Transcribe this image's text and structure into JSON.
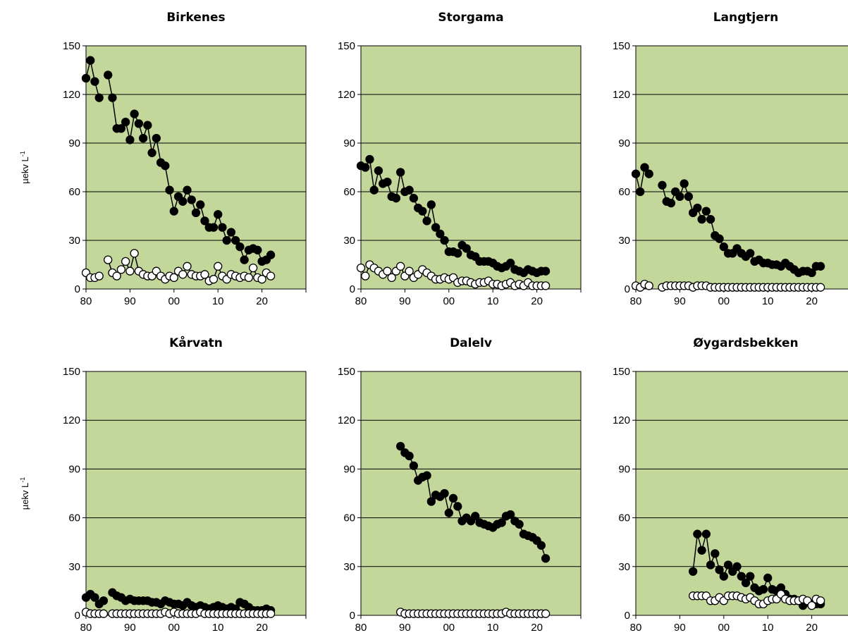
{
  "chart_data": [
    {
      "type": "line",
      "title": "Birkenes",
      "ylabel": "µekv L",
      "ylabel_sup": "-1",
      "ylim": [
        0,
        150
      ],
      "yticks": [
        "0",
        "30",
        "60",
        "90",
        "120",
        "150"
      ],
      "xlim": [
        1980,
        2030
      ],
      "xticks": [
        "80",
        "90",
        "00",
        "10",
        "20"
      ],
      "grid": "horizontal",
      "series": [
        {
          "marker": "filled",
          "x": [
            1980,
            1981,
            1982,
            1983,
            1985,
            1986,
            1987,
            1988,
            1989,
            1990,
            1991,
            1992,
            1993,
            1994,
            1995,
            1996,
            1997,
            1998,
            1999,
            2000,
            2001,
            2002,
            2003,
            2004,
            2005,
            2006,
            2007,
            2008,
            2009,
            2010,
            2011,
            2012,
            2013,
            2014,
            2015,
            2016,
            2017,
            2018,
            2019,
            2020,
            2021,
            2022
          ],
          "y": [
            130,
            141,
            128,
            118,
            132,
            118,
            99,
            99,
            103,
            92,
            108,
            102,
            93,
            101,
            84,
            93,
            78,
            76,
            61,
            48,
            57,
            54,
            61,
            55,
            47,
            52,
            42,
            38,
            38,
            46,
            38,
            30,
            35,
            30,
            26,
            18,
            24,
            25,
            24,
            17,
            18,
            21
          ]
        },
        {
          "marker": "open",
          "x": [
            1980,
            1981,
            1982,
            1983,
            1985,
            1986,
            1987,
            1988,
            1989,
            1990,
            1991,
            1992,
            1993,
            1994,
            1995,
            1996,
            1997,
            1998,
            1999,
            2000,
            2001,
            2002,
            2003,
            2004,
            2005,
            2006,
            2007,
            2008,
            2009,
            2010,
            2011,
            2012,
            2013,
            2014,
            2015,
            2016,
            2017,
            2018,
            2019,
            2020,
            2021,
            2022
          ],
          "y": [
            10,
            7,
            7,
            8,
            18,
            10,
            8,
            12,
            17,
            11,
            22,
            11,
            9,
            8,
            8,
            11,
            8,
            6,
            8,
            7,
            11,
            9,
            14,
            9,
            8,
            8,
            9,
            5,
            6,
            14,
            8,
            6,
            9,
            8,
            7,
            8,
            7,
            13,
            7,
            6,
            10,
            8
          ]
        }
      ]
    },
    {
      "type": "line",
      "title": "Storgama",
      "ylim": [
        0,
        150
      ],
      "yticks": [
        "0",
        "30",
        "60",
        "90",
        "120",
        "150"
      ],
      "xlim": [
        1980,
        2030
      ],
      "xticks": [
        "80",
        "90",
        "00",
        "10",
        "20"
      ],
      "grid": "horizontal",
      "series": [
        {
          "marker": "filled",
          "x": [
            1980,
            1981,
            1982,
            1983,
            1984,
            1985,
            1986,
            1987,
            1988,
            1989,
            1990,
            1991,
            1992,
            1993,
            1994,
            1995,
            1996,
            1997,
            1998,
            1999,
            2000,
            2001,
            2002,
            2003,
            2004,
            2005,
            2006,
            2007,
            2008,
            2009,
            2010,
            2011,
            2012,
            2013,
            2014,
            2015,
            2016,
            2017,
            2018,
            2019,
            2020,
            2021,
            2022
          ],
          "y": [
            76,
            75,
            80,
            61,
            73,
            65,
            66,
            57,
            56,
            72,
            60,
            61,
            56,
            50,
            48,
            42,
            52,
            38,
            34,
            30,
            23,
            23,
            22,
            27,
            25,
            21,
            20,
            17,
            17,
            17,
            16,
            14,
            13,
            14,
            16,
            12,
            11,
            10,
            12,
            11,
            10,
            11,
            11
          ]
        },
        {
          "marker": "open",
          "x": [
            1980,
            1981,
            1982,
            1983,
            1984,
            1985,
            1986,
            1987,
            1988,
            1989,
            1990,
            1991,
            1992,
            1993,
            1994,
            1995,
            1996,
            1997,
            1998,
            1999,
            2000,
            2001,
            2002,
            2003,
            2004,
            2005,
            2006,
            2007,
            2008,
            2009,
            2010,
            2011,
            2012,
            2013,
            2014,
            2015,
            2016,
            2017,
            2018,
            2019,
            2020,
            2021,
            2022
          ],
          "y": [
            13,
            8,
            15,
            13,
            11,
            9,
            11,
            7,
            11,
            14,
            8,
            11,
            7,
            9,
            12,
            10,
            8,
            6,
            6,
            7,
            6,
            7,
            4,
            5,
            5,
            4,
            3,
            4,
            4,
            5,
            3,
            3,
            2,
            3,
            4,
            2,
            3,
            2,
            4,
            2,
            2,
            2,
            2
          ]
        }
      ]
    },
    {
      "type": "line",
      "title": "Langtjern",
      "ylim": [
        0,
        150
      ],
      "yticks": [
        "0",
        "30",
        "60",
        "90",
        "120",
        "150"
      ],
      "xlim": [
        1980,
        2030
      ],
      "xticks": [
        "80",
        "90",
        "00",
        "10",
        "20"
      ],
      "grid": "horizontal",
      "series": [
        {
          "marker": "filled",
          "x": [
            1980,
            1981,
            1982,
            1983,
            1986,
            1987,
            1988,
            1989,
            1990,
            1991,
            1992,
            1993,
            1994,
            1995,
            1996,
            1997,
            1998,
            1999,
            2000,
            2001,
            2002,
            2003,
            2004,
            2005,
            2006,
            2007,
            2008,
            2009,
            2010,
            2011,
            2012,
            2013,
            2014,
            2015,
            2016,
            2017,
            2018,
            2019,
            2020,
            2021,
            2022
          ],
          "y": [
            71,
            60,
            75,
            71,
            64,
            54,
            53,
            60,
            57,
            65,
            57,
            47,
            50,
            43,
            48,
            43,
            33,
            31,
            26,
            22,
            22,
            25,
            22,
            20,
            22,
            17,
            18,
            16,
            16,
            15,
            15,
            14,
            16,
            14,
            12,
            10,
            11,
            11,
            10,
            14,
            14
          ]
        },
        {
          "marker": "open",
          "x": [
            1980,
            1981,
            1982,
            1983,
            1986,
            1987,
            1988,
            1989,
            1990,
            1991,
            1992,
            1993,
            1994,
            1995,
            1996,
            1997,
            1998,
            1999,
            2000,
            2001,
            2002,
            2003,
            2004,
            2005,
            2006,
            2007,
            2008,
            2009,
            2010,
            2011,
            2012,
            2013,
            2014,
            2015,
            2016,
            2017,
            2018,
            2019,
            2020,
            2021,
            2022
          ],
          "y": [
            2,
            1,
            3,
            2,
            1,
            2,
            2,
            2,
            2,
            2,
            2,
            1,
            2,
            2,
            2,
            1,
            1,
            1,
            1,
            1,
            1,
            1,
            1,
            1,
            1,
            1,
            1,
            1,
            1,
            1,
            1,
            1,
            1,
            1,
            1,
            1,
            1,
            1,
            1,
            1,
            1
          ]
        }
      ]
    },
    {
      "type": "line",
      "title": "Kårvatn",
      "ylabel": "µekv L",
      "ylabel_sup": "-1",
      "ylim": [
        0,
        150
      ],
      "yticks": [
        "0",
        "30",
        "60",
        "90",
        "120",
        "150"
      ],
      "xlim": [
        1980,
        2030
      ],
      "xticks": [
        "80",
        "90",
        "00",
        "10",
        "20"
      ],
      "grid": "horizontal",
      "series": [
        {
          "marker": "filled",
          "x": [
            1980,
            1981,
            1982,
            1983,
            1984,
            1986,
            1987,
            1988,
            1989,
            1990,
            1991,
            1992,
            1993,
            1994,
            1995,
            1996,
            1997,
            1998,
            1999,
            2000,
            2001,
            2002,
            2003,
            2004,
            2005,
            2006,
            2007,
            2008,
            2009,
            2010,
            2011,
            2012,
            2013,
            2014,
            2015,
            2016,
            2017,
            2018,
            2019,
            2020,
            2021,
            2022
          ],
          "y": [
            11,
            13,
            11,
            7,
            9,
            14,
            12,
            11,
            9,
            10,
            9,
            9,
            9,
            9,
            8,
            8,
            7,
            9,
            8,
            7,
            7,
            6,
            8,
            6,
            5,
            6,
            5,
            4,
            5,
            6,
            5,
            4,
            5,
            4,
            8,
            7,
            5,
            3,
            3,
            3,
            4,
            3
          ]
        },
        {
          "marker": "open",
          "x": [
            1980,
            1981,
            1982,
            1983,
            1984,
            1986,
            1987,
            1988,
            1989,
            1990,
            1991,
            1992,
            1993,
            1994,
            1995,
            1996,
            1997,
            1998,
            1999,
            2000,
            2001,
            2002,
            2003,
            2004,
            2005,
            2006,
            2007,
            2008,
            2009,
            2010,
            2011,
            2012,
            2013,
            2014,
            2015,
            2016,
            2017,
            2018,
            2019,
            2020,
            2021,
            2022
          ],
          "y": [
            2,
            1,
            1,
            1,
            1,
            1,
            1,
            1,
            1,
            1,
            1,
            1,
            1,
            1,
            1,
            1,
            1,
            2,
            1,
            2,
            1,
            1,
            1,
            1,
            1,
            2,
            1,
            1,
            1,
            1,
            1,
            1,
            1,
            1,
            1,
            1,
            1,
            1,
            1,
            1,
            1,
            1
          ]
        }
      ]
    },
    {
      "type": "line",
      "title": "Dalelv",
      "ylim": [
        0,
        150
      ],
      "yticks": [
        "0",
        "30",
        "60",
        "90",
        "120",
        "150"
      ],
      "xlim": [
        1980,
        2030
      ],
      "xticks": [
        "80",
        "90",
        "00",
        "10",
        "20"
      ],
      "grid": "horizontal",
      "series": [
        {
          "marker": "filled",
          "x": [
            1989,
            1990,
            1991,
            1992,
            1993,
            1994,
            1995,
            1996,
            1997,
            1998,
            1999,
            2000,
            2001,
            2002,
            2003,
            2004,
            2005,
            2006,
            2007,
            2008,
            2009,
            2010,
            2011,
            2012,
            2013,
            2014,
            2015,
            2016,
            2017,
            2018,
            2019,
            2020,
            2021,
            2022
          ],
          "y": [
            104,
            100,
            98,
            92,
            83,
            85,
            86,
            70,
            74,
            73,
            75,
            63,
            72,
            67,
            58,
            60,
            58,
            61,
            57,
            56,
            55,
            54,
            56,
            57,
            61,
            62,
            58,
            56,
            50,
            49,
            48,
            46,
            43,
            35
          ]
        },
        {
          "marker": "open",
          "x": [
            1989,
            1990,
            1991,
            1992,
            1993,
            1994,
            1995,
            1996,
            1997,
            1998,
            1999,
            2000,
            2001,
            2002,
            2003,
            2004,
            2005,
            2006,
            2007,
            2008,
            2009,
            2010,
            2011,
            2012,
            2013,
            2014,
            2015,
            2016,
            2017,
            2018,
            2019,
            2020,
            2021,
            2022
          ],
          "y": [
            2,
            1,
            1,
            1,
            1,
            1,
            1,
            1,
            1,
            1,
            1,
            1,
            1,
            1,
            1,
            1,
            1,
            1,
            1,
            1,
            1,
            1,
            1,
            1,
            2,
            1,
            1,
            1,
            1,
            1,
            1,
            1,
            1,
            1
          ]
        }
      ]
    },
    {
      "type": "line",
      "title": "Øygardsbekken",
      "ylim": [
        0,
        150
      ],
      "yticks": [
        "0",
        "30",
        "60",
        "90",
        "120",
        "150"
      ],
      "xlim": [
        1980,
        2030
      ],
      "xticks": [
        "80",
        "90",
        "00",
        "10",
        "20"
      ],
      "grid": "horizontal",
      "series": [
        {
          "marker": "filled",
          "x": [
            1993,
            1994,
            1995,
            1996,
            1997,
            1998,
            1999,
            2000,
            2001,
            2002,
            2003,
            2004,
            2005,
            2006,
            2007,
            2008,
            2009,
            2010,
            2011,
            2012,
            2013,
            2014,
            2015,
            2016,
            2017,
            2018,
            2019,
            2020,
            2021,
            2022
          ],
          "y": [
            27,
            50,
            40,
            50,
            31,
            38,
            28,
            24,
            31,
            27,
            30,
            24,
            20,
            24,
            17,
            15,
            16,
            23,
            16,
            15,
            17,
            13,
            10,
            10,
            9,
            6,
            8,
            7,
            7,
            7
          ]
        },
        {
          "marker": "open",
          "x": [
            1993,
            1994,
            1995,
            1996,
            1997,
            1998,
            1999,
            2000,
            2001,
            2002,
            2003,
            2004,
            2005,
            2006,
            2007,
            2008,
            2009,
            2010,
            2011,
            2012,
            2013,
            2014,
            2015,
            2016,
            2017,
            2018,
            2019,
            2020,
            2021,
            2022
          ],
          "y": [
            12,
            12,
            12,
            12,
            9,
            9,
            11,
            9,
            12,
            12,
            12,
            11,
            10,
            11,
            9,
            7,
            7,
            9,
            10,
            10,
            13,
            10,
            9,
            9,
            9,
            10,
            9,
            6,
            10,
            9
          ]
        }
      ]
    }
  ]
}
